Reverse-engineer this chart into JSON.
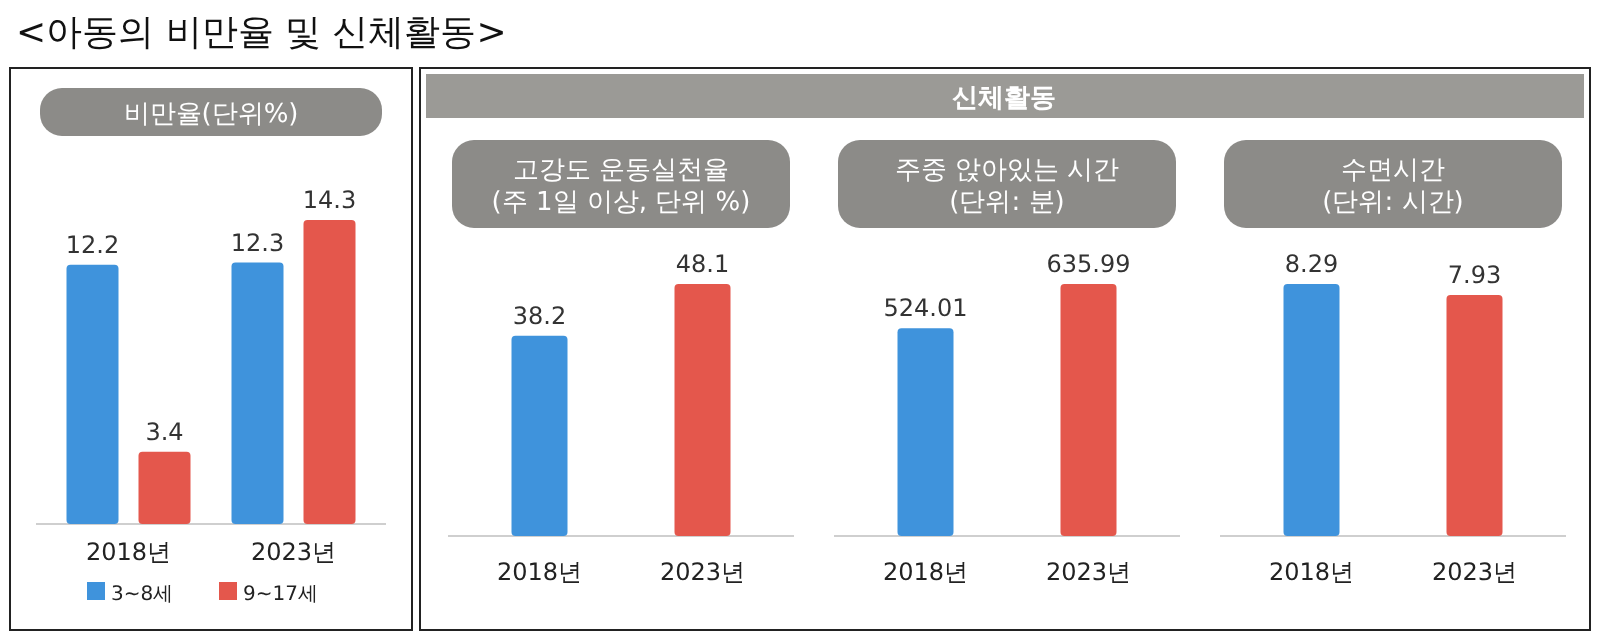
{
  "chart_data": [
    {
      "type": "bar",
      "title": "비만율(단위%)",
      "annotations": [
        "<아동의 비만율 및 신체활동>"
      ],
      "categories": [
        "2018년",
        "2023년"
      ],
      "series": [
        {
          "name": "3~8세",
          "color": "#3f93dc",
          "values": [
            12.2,
            12.3
          ]
        },
        {
          "name": "9~17세",
          "color": "#e4574c",
          "values": [
            3.4,
            14.3
          ]
        }
      ],
      "data_labels": true,
      "legend": "bottom",
      "tick_labels": "x"
    },
    {
      "type": "bar",
      "title": "고강도 운동실천율\n(주 1일 이상, 단위 %)",
      "annotations": [
        "신체활동"
      ],
      "categories": [
        "2018년",
        "2023년"
      ],
      "values": [
        38.2,
        48.1
      ],
      "colors": [
        "#3f93dc",
        "#e4574c"
      ],
      "data_labels": true,
      "tick_labels": "x"
    },
    {
      "type": "bar",
      "title": "주중 앉아있는 시간\n(단위: 분)",
      "categories": [
        "2018년",
        "2023년"
      ],
      "values": [
        524.01,
        635.99
      ],
      "colors": [
        "#3f93dc",
        "#e4574c"
      ],
      "data_labels": true,
      "tick_labels": "x"
    },
    {
      "type": "bar",
      "title": "수면시간\n(단위: 시간)",
      "categories": [
        "2018년",
        "2023년"
      ],
      "values": [
        8.29,
        7.93
      ],
      "colors": [
        "#3f93dc",
        "#e4574c"
      ],
      "data_labels": true,
      "tick_labels": "x"
    }
  ]
}
